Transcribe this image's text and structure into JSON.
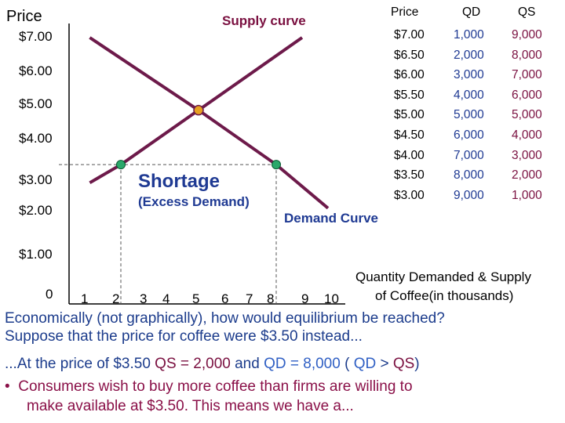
{
  "chart_data": {
    "type": "line",
    "ylabel": "Price",
    "y_ticks": [
      "$7.00",
      "$6.00",
      "$5.00",
      "$4.00",
      "$3.00",
      "$2.00",
      "$1.00"
    ],
    "x_ticks": [
      "0",
      "1",
      "2",
      "3",
      "4",
      "5",
      "6",
      "7",
      "8",
      "9",
      "10"
    ],
    "xlabel_line1": "Quantity Demanded & Supply",
    "xlabel_line2": "of Coffee(in thousands)",
    "supply_label": "Supply curve",
    "demand_label": "Demand Curve",
    "shortage_label": "Shortage",
    "shortage_sub": "(Excess Demand)",
    "series": [
      {
        "name": "Supply curve",
        "color": "#6d1a4a",
        "points": [
          [
            0.8,
            3.0
          ],
          [
            2,
            3.5
          ],
          [
            5,
            5.0
          ],
          [
            9,
            7.0
          ]
        ]
      },
      {
        "name": "Demand Curve",
        "color": "#6d1a4a",
        "points": [
          [
            0.8,
            7.0
          ],
          [
            5,
            5.0
          ],
          [
            8,
            3.5
          ],
          [
            10,
            2.3
          ]
        ]
      }
    ],
    "equilibrium": {
      "x": 5,
      "y": 5.0,
      "color": "#e8a020"
    },
    "markers": [
      {
        "x": 2,
        "y": 3.5,
        "color": "#2aa86a"
      },
      {
        "x": 8,
        "y": 3.5,
        "color": "#2aa86a"
      }
    ],
    "reference_price": 3.5,
    "reference_quantities": [
      2,
      8
    ],
    "table": {
      "headers": [
        "Price",
        "QD",
        "QS"
      ],
      "price": [
        "$7.00",
        "$6.50",
        "$6.00",
        "$5.50",
        "$5.00",
        "$4.50",
        "$4.00",
        "$3.50",
        "$3.00"
      ],
      "qd": [
        "1,000",
        "2,000",
        "3,000",
        "4,000",
        "5,000",
        "6,000",
        "7,000",
        "8,000",
        "9,000"
      ],
      "qs": [
        "9,000",
        "8,000",
        "7,000",
        "6,000",
        "5,000",
        "4,000",
        "3,000",
        "2,000",
        "1,000"
      ]
    }
  },
  "text": {
    "line1": "Economically (not graphically), how would equilibrium be reached?",
    "line2": "Suppose that the price for coffee were $3.50 instead...",
    "line3_a": "...At the price of $3.50 ",
    "line3_qs": "QS = 2,000",
    "line3_and": " and ",
    "line3_qd": "QD = 8,000",
    "line3_paren_open": " ( ",
    "line3_qd2": "QD",
    "line3_gt": " > ",
    "line3_qs2": "QS",
    "line3_paren_close": ")",
    "bullet": "•",
    "bullet_line1": "Consumers wish to buy more coffee than firms are willing to",
    "bullet_line2": "make available at $3.50.  This means we have a..."
  }
}
